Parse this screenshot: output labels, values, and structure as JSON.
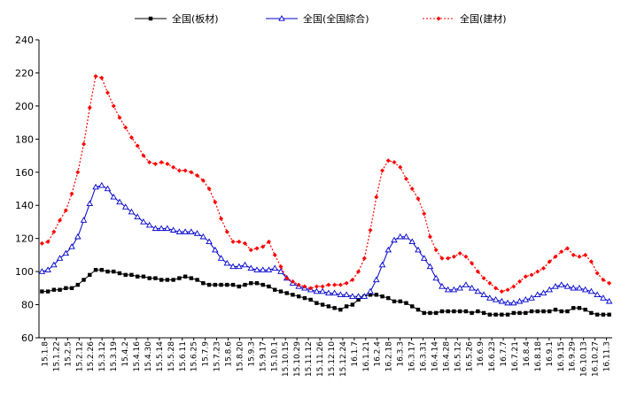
{
  "chart_data": {
    "type": "line",
    "title": "",
    "xlabel": "",
    "ylabel": "",
    "ylim": [
      60,
      240
    ],
    "yticks": [
      60,
      80,
      100,
      120,
      140,
      160,
      180,
      200,
      220,
      240
    ],
    "grid": false,
    "legend_position": "top",
    "x": [
      "15.1.8",
      "15.1.15",
      "15.1.22",
      "15.1.29",
      "15.2.5",
      "15.2.12",
      "15.2.19",
      "15.2.26",
      "15.3.5",
      "15.3.12",
      "15.3.19",
      "15.3.26",
      "15.4.2",
      "15.4.9",
      "15.4.16",
      "15.4.23",
      "15.4.30",
      "15.5.7",
      "15.5.14",
      "15.5.21",
      "15.5.28",
      "15.6.4",
      "15.6.11",
      "15.6.18",
      "15.6.25",
      "15.7.2",
      "15.7.9",
      "15.7.16",
      "15.7.23",
      "15.7.30",
      "15.8.6",
      "15.8.13",
      "15.8.20",
      "15.8.27",
      "15.9.3",
      "15.9.10",
      "15.9.17",
      "15.9.24",
      "15.10.1",
      "15.10.8",
      "15.10.15",
      "15.10.22",
      "15.10.29",
      "15.11.5",
      "15.11.12",
      "15.11.19",
      "15.11.26",
      "15.12.3",
      "15.12.10",
      "15.12.17",
      "15.12.24",
      "15.12.31",
      "16.1.7",
      "16.1.14",
      "16.1.21",
      "16.1.28",
      "16.2.4",
      "16.2.11",
      "16.2.18",
      "16.2.25",
      "16.3.3",
      "16.3.10",
      "16.3.17",
      "16.3.24",
      "16.3.31",
      "16.4.7",
      "16.4.14",
      "16.4.21",
      "16.4.28",
      "16.5.5",
      "16.5.12",
      "16.5.19",
      "16.5.26",
      "16.6.2",
      "16.6.9",
      "16.6.16",
      "16.6.23",
      "16.6.30",
      "16.7.7",
      "16.7.14",
      "16.7.21",
      "16.7.28",
      "16.8.4",
      "16.8.11",
      "16.8.18",
      "16.8.25",
      "16.9.1",
      "16.9.8",
      "16.9.15",
      "16.9.22",
      "16.9.29",
      "16.10.6",
      "16.10.13",
      "16.10.20",
      "16.10.27",
      "16.11.3"
    ],
    "x_tick_labels": [
      "15.1.8",
      "15.1.22",
      "15.2.5",
      "15.2.12",
      "15.2.26",
      "15.3.12",
      "15.3.19",
      "15.4.2",
      "15.4.16",
      "15.4.30",
      "15.5.14",
      "15.5.28",
      "15.6.11",
      "15.6.25",
      "15.7.9",
      "15.7.23",
      "15.8.6",
      "15.8.20",
      "15.9.3",
      "15.9.17",
      "15.10.1",
      "15.10.15",
      "15.10.29",
      "15.11.12",
      "15.11.26",
      "15.12.10",
      "15.12.24",
      "16.1.7",
      "16.1.21",
      "16.2.4",
      "16.2.18",
      "16.3.3",
      "16.3.17",
      "16.3.31",
      "16.4.14",
      "16.4.28",
      "16.5.12",
      "16.5.26",
      "16.6.9",
      "16.6.23",
      "16.7.7",
      "16.7.21",
      "16.8.4",
      "16.8.18",
      "16.9.1",
      "16.9.15",
      "16.9.29",
      "16.10.13",
      "16.10.27",
      "16.11.3"
    ],
    "series": [
      {
        "name": "全国(板材)",
        "color": "#000000",
        "marker": "square",
        "values": [
          88,
          88,
          89,
          89,
          90,
          90,
          92,
          95,
          98,
          101,
          101,
          100,
          100,
          99,
          98,
          98,
          97,
          97,
          96,
          96,
          95,
          95,
          95,
          96,
          97,
          96,
          95,
          93,
          92,
          92,
          92,
          92,
          92,
          91,
          92,
          93,
          93,
          92,
          91,
          89,
          88,
          87,
          86,
          85,
          84,
          83,
          81,
          80,
          79,
          78,
          77,
          79,
          80,
          83,
          85,
          86,
          86,
          85,
          84,
          82,
          82,
          81,
          79,
          77,
          75,
          75,
          75,
          76,
          76,
          76,
          76,
          76,
          75,
          76,
          75,
          74,
          74,
          74,
          74,
          75,
          75,
          75,
          76,
          76,
          76,
          76,
          77,
          76,
          76,
          78,
          78,
          77,
          75,
          74,
          74,
          74
        ]
      },
      {
        "name": "全国(全国綜合)",
        "color": "#0000cc",
        "marker": "triangle",
        "values": [
          100,
          101,
          104,
          108,
          111,
          115,
          121,
          131,
          141,
          151,
          152,
          150,
          145,
          142,
          139,
          136,
          133,
          130,
          128,
          126,
          126,
          126,
          125,
          124,
          124,
          124,
          123,
          121,
          118,
          113,
          108,
          105,
          103,
          103,
          104,
          102,
          101,
          101,
          101,
          102,
          100,
          96,
          93,
          91,
          90,
          89,
          88,
          88,
          87,
          87,
          86,
          86,
          85,
          85,
          85,
          88,
          95,
          104,
          113,
          119,
          121,
          121,
          118,
          113,
          108,
          103,
          96,
          91,
          89,
          89,
          90,
          92,
          90,
          88,
          86,
          84,
          83,
          82,
          81,
          81,
          82,
          83,
          84,
          86,
          87,
          89,
          91,
          92,
          91,
          90,
          90,
          89,
          88,
          86,
          84,
          82
        ]
      },
      {
        "name": "全国(建材)",
        "color": "#ff0000",
        "marker": "diamond",
        "values": [
          117,
          118,
          124,
          131,
          137,
          147,
          160,
          177,
          199,
          218,
          217,
          208,
          200,
          193,
          187,
          181,
          176,
          170,
          166,
          165,
          166,
          165,
          163,
          161,
          161,
          160,
          158,
          155,
          150,
          142,
          132,
          124,
          118,
          118,
          117,
          113,
          114,
          115,
          118,
          110,
          103,
          96,
          94,
          92,
          91,
          90,
          91,
          91,
          92,
          92,
          92,
          93,
          95,
          100,
          108,
          125,
          145,
          161,
          167,
          166,
          163,
          156,
          150,
          144,
          135,
          121,
          113,
          108,
          108,
          109,
          111,
          109,
          105,
          100,
          96,
          93,
          90,
          88,
          89,
          91,
          94,
          97,
          98,
          100,
          102,
          106,
          109,
          112,
          114,
          110,
          109,
          110,
          106,
          99,
          95,
          93
        ]
      }
    ]
  }
}
